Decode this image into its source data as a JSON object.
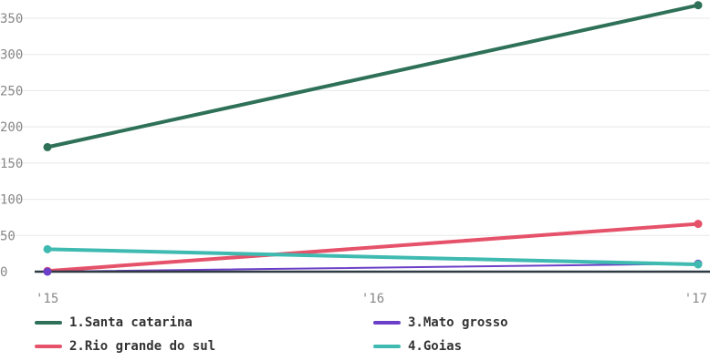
{
  "chart_data": {
    "type": "line",
    "categories": [
      "'15",
      "'16",
      "'17"
    ],
    "ylim": [
      0,
      370
    ],
    "yticks": [
      0,
      50,
      100,
      150,
      200,
      250,
      300,
      350
    ],
    "grid": true,
    "legend_position": "bottom",
    "series": [
      {
        "name": "1.Santa catarina",
        "color": "#2e7158",
        "values": [
          172,
          null,
          368
        ]
      },
      {
        "name": "2.Rio grande do sul",
        "color": "#e5526a",
        "values": [
          1,
          null,
          66
        ]
      },
      {
        "name": "3.Mato grosso",
        "color": "#6b3fc7",
        "values": [
          0,
          null,
          11
        ]
      },
      {
        "name": "4.Goias",
        "color": "#3fbab1",
        "values": [
          31,
          null,
          10
        ]
      }
    ]
  }
}
